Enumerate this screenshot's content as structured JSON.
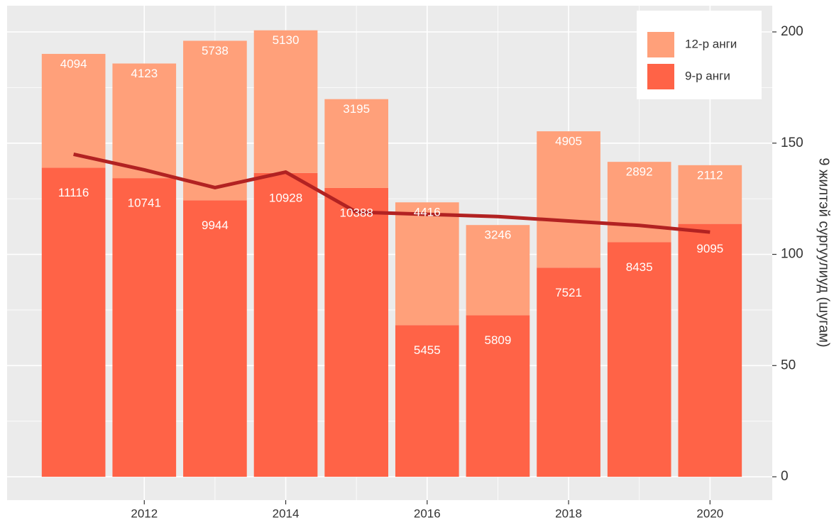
{
  "chart_data": {
    "type": "bar",
    "x": [
      2011,
      2012,
      2013,
      2014,
      2015,
      2016,
      2017,
      2018,
      2019,
      2020
    ],
    "xlim": [
      2010.06,
      2020.88
    ],
    "xticks": [
      2012,
      2014,
      2016,
      2018,
      2020
    ],
    "ylim": [
      -840,
      16944
    ],
    "y2lim": [
      -10.5,
      211.8
    ],
    "y2ticks": [
      0,
      50,
      100,
      150,
      200
    ],
    "y2label": "9 жилтэй сургуулиуд (шугам)",
    "grid": true,
    "stacked": true,
    "legend": "top-right",
    "series": [
      {
        "name": "9-р анги",
        "color": "#FF6347",
        "values": [
          11116,
          10741,
          9944,
          10928,
          10388,
          5455,
          5809,
          7521,
          8435,
          9095
        ]
      },
      {
        "name": "12-р анги",
        "color": "#FFA07A",
        "values": [
          4094,
          4123,
          5738,
          5130,
          3195,
          4416,
          3246,
          4905,
          2892,
          2112
        ]
      },
      {
        "type": "line",
        "axis": "y2",
        "color": "#B22222",
        "values": [
          145,
          138,
          130,
          137,
          119,
          118,
          117,
          115,
          113,
          110
        ]
      }
    ]
  }
}
